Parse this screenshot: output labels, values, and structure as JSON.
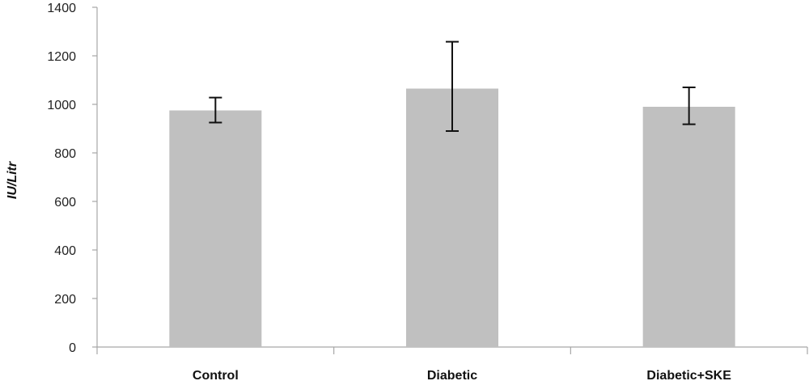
{
  "chart_data": {
    "type": "bar",
    "categories": [
      "Control",
      "Diabetic",
      "Diabetic+SKE"
    ],
    "values": [
      975,
      1065,
      990
    ],
    "error_bars": [
      {
        "low": 925,
        "high": 1028
      },
      {
        "low": 890,
        "high": 1258
      },
      {
        "low": 918,
        "high": 1070
      }
    ],
    "ylabel": "IU/Litr",
    "ylim": [
      0,
      1400
    ],
    "yticks": [
      0,
      200,
      400,
      600,
      800,
      1000,
      1200,
      1400
    ],
    "ytick_labels": [
      "0",
      "200",
      "400",
      "600",
      "800",
      "1000",
      "1200",
      "1400"
    ],
    "grid": false,
    "bar_color": "#c0c0c0",
    "axis_color": "#a6a6a6",
    "errorbar_color": "#111111"
  }
}
